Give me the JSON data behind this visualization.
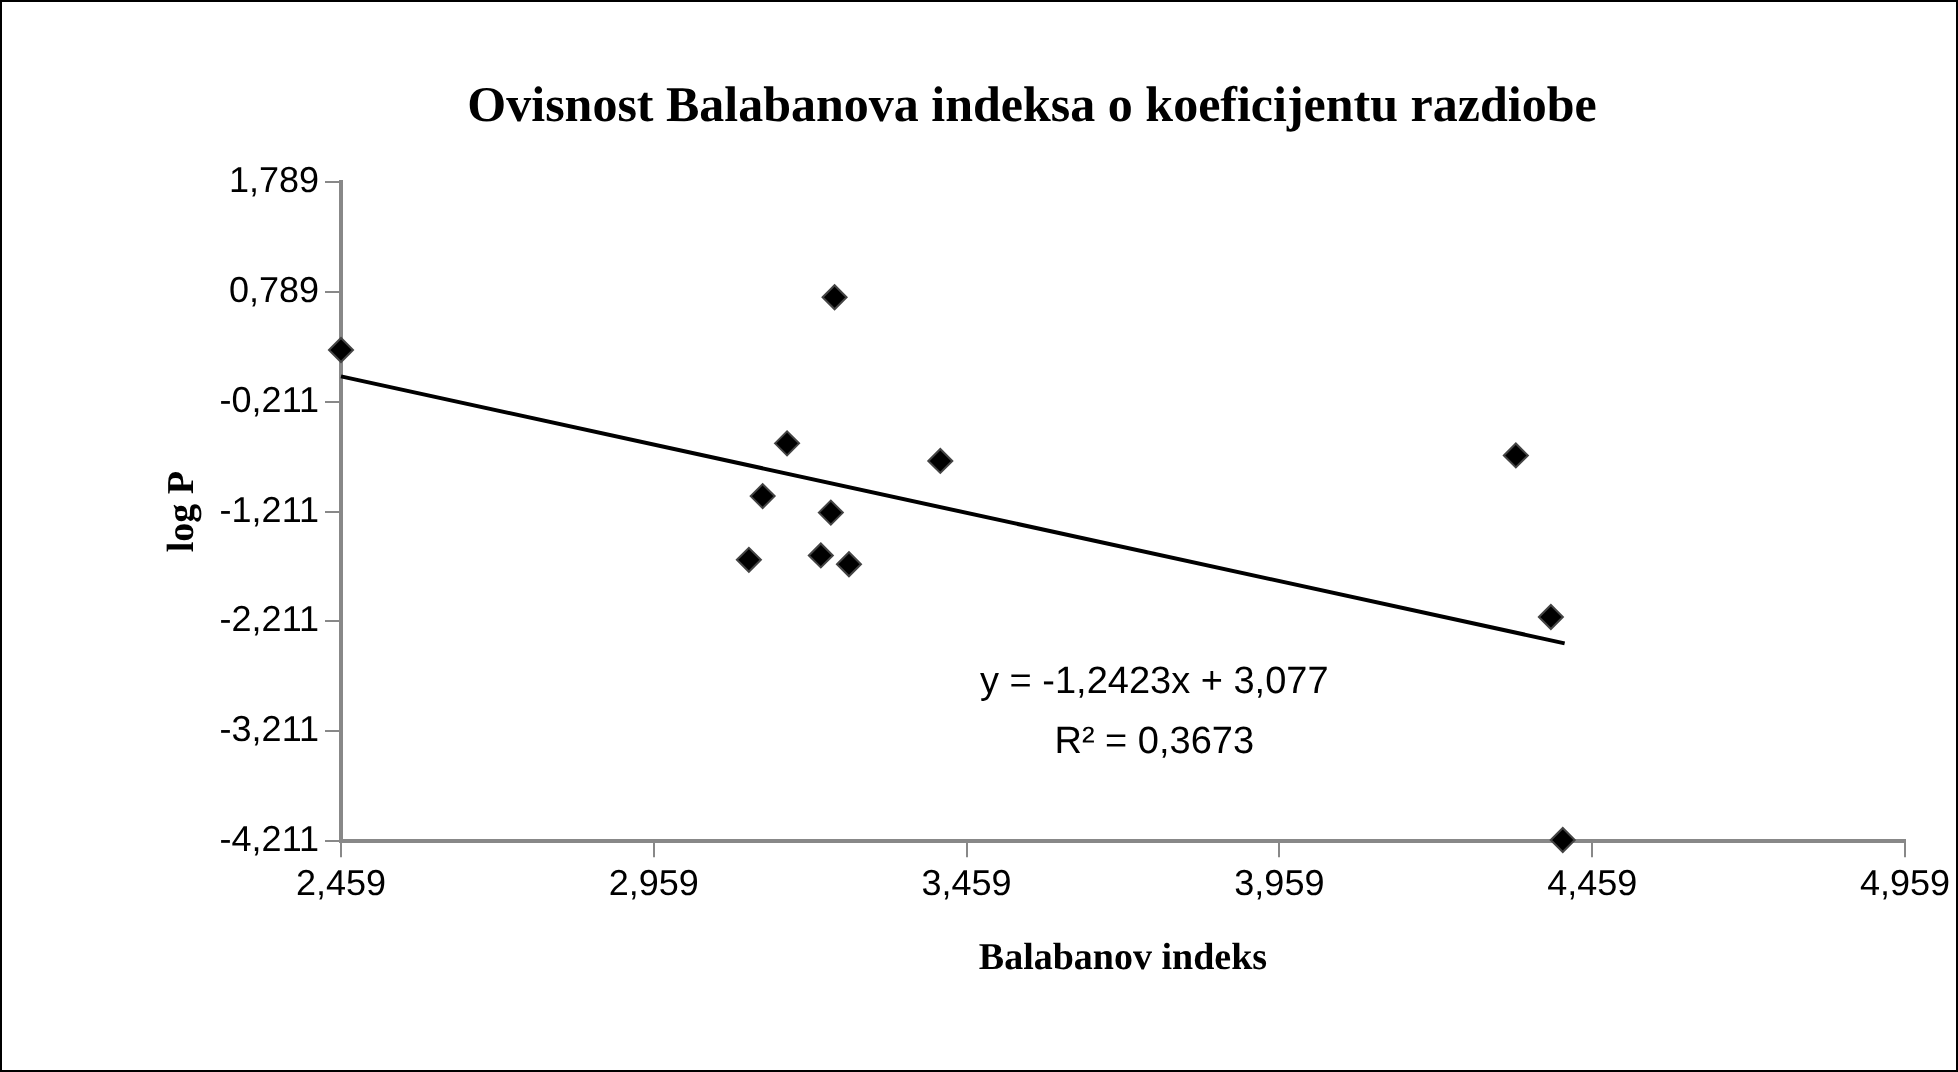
{
  "chart_data": {
    "type": "scatter",
    "title": "Ovisnost Balabanova indeksa o koeficijentu razdiobe",
    "xlabel": "Balabanov indeks",
    "ylabel": "log P",
    "xlim": [
      2.459,
      4.959
    ],
    "xticks": [
      {
        "value": 2.459,
        "label": "2,459"
      },
      {
        "value": 2.959,
        "label": "2,959"
      },
      {
        "value": 3.459,
        "label": "3,459"
      },
      {
        "value": 3.959,
        "label": "3,959"
      },
      {
        "value": 4.459,
        "label": "4,459"
      },
      {
        "value": 4.959,
        "label": "4,959"
      }
    ],
    "ylim": [
      -4.211,
      1.789
    ],
    "yticks": [
      {
        "value": -4.211,
        "label": "-4,211"
      },
      {
        "value": -3.211,
        "label": "-3,211"
      },
      {
        "value": -2.211,
        "label": "-2,211"
      },
      {
        "value": -1.211,
        "label": "-1,211"
      },
      {
        "value": -0.211,
        "label": "-0,211"
      },
      {
        "value": 0.789,
        "label": "0,789"
      },
      {
        "value": 1.789,
        "label": "1,789"
      }
    ],
    "grid": false,
    "legend": false,
    "marker": "diamond",
    "series": [
      {
        "color": "#000000",
        "x": [
          2.459,
          3.248,
          3.172,
          3.417,
          3.133,
          3.242,
          3.111,
          3.226,
          3.271,
          4.337,
          4.393,
          4.412
        ],
        "values": [
          0.26,
          0.74,
          -0.59,
          -0.75,
          -1.07,
          -1.22,
          -1.65,
          -1.61,
          -1.69,
          -0.7,
          -2.17,
          -4.2
        ]
      },
      {
        "type": "line",
        "color": "#000000",
        "marker": "none",
        "x": [
          2.459,
          4.415
        ],
        "values": [
          0.02,
          -2.41
        ]
      }
    ],
    "annotations": [
      "y = -1,2423x + 3,077",
      "R² = 0,3673"
    ]
  }
}
